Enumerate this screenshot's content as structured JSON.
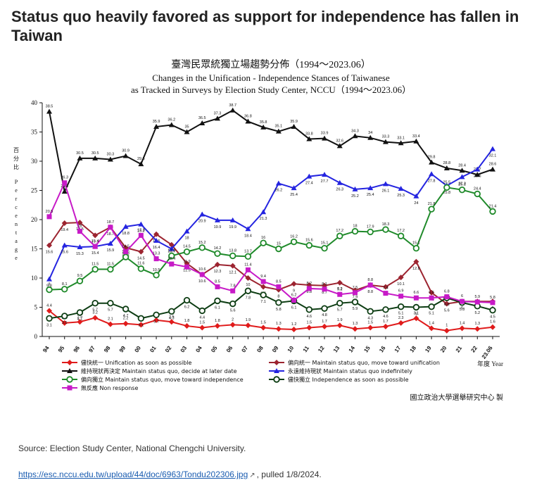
{
  "page": {
    "headline": "Status quo heavily favored as support for independence has fallen in Taiwan",
    "source": "Source: Election Study Center, National Chengchi University.",
    "link_text": "https://esc.nccu.edu.tw/upload/44/doc/6963/Tondu202306.jpg",
    "pulled": ", pulled 1/8/2024."
  },
  "chart_data": {
    "type": "line",
    "title_zh": "臺灣民眾統獨立場趨勢分佈（1994～2023.06）",
    "title_en_1": "Changes in the Unification - Independence Stances of Taiwanese",
    "title_en_2": "as Tracked in Surveys by Election Study Center, NCCU（1994～2023.06）",
    "ylabel_zh": "百分比",
    "ylabel_en": "Percentage",
    "xunit": "年度 Year",
    "credit": "國立政治大學選舉研究中心 製",
    "ylim": [
      0,
      40
    ],
    "yticks": [
      "0",
      "5",
      "10",
      "15",
      "20",
      "25",
      "30",
      "35",
      "40"
    ],
    "categories": [
      "94",
      "95",
      "96",
      "97",
      "98",
      "99",
      "00",
      "01",
      "02",
      "03",
      "04",
      "05",
      "06",
      "07",
      "08",
      "09",
      "10",
      "11",
      "12",
      "13",
      "14",
      "15",
      "16",
      "17",
      "18",
      "19",
      "20",
      "21",
      "22",
      "23.06"
    ],
    "series": [
      {
        "name": "儘快統一 Unification as soon as possible",
        "color": "#e01b1b",
        "marker": "diamond",
        "values": [
          4.4,
          2.3,
          2.5,
          3.2,
          2.1,
          2.2,
          2.0,
          2.8,
          2.5,
          1.8,
          1.5,
          1.8,
          2.0,
          1.9,
          1.5,
          1.3,
          1.2,
          1.5,
          1.7,
          1.9,
          1.3,
          1.5,
          1.7,
          2.3,
          3.1,
          1.4,
          1.0,
          1.4,
          1.3,
          1.6
        ]
      },
      {
        "name": "偏向統一 Maintain status quo, move toward unification",
        "color": "#9c2430",
        "marker": "diamond",
        "values": [
          15.6,
          19.4,
          19.5,
          17.3,
          18.7,
          15.2,
          14.5,
          17.5,
          15.7,
          12.5,
          10.6,
          12.3,
          12.1,
          10.0,
          8.5,
          8.0,
          9.0,
          8.8,
          8.7,
          9.2,
          7.9,
          8.8,
          8.5,
          10.1,
          12.8,
          7.5,
          5.6,
          6.0,
          6.0,
          6.0
        ]
      },
      {
        "name": "維持現狀再決定 Maintain status quo, decide at later date",
        "color": "#111111",
        "marker": "triangle",
        "values": [
          38.5,
          24.8,
          30.5,
          30.5,
          30.3,
          30.9,
          29.5,
          35.9,
          36.2,
          35.0,
          36.5,
          37.3,
          38.7,
          36.8,
          35.8,
          35.1,
          35.9,
          33.8,
          33.9,
          32.6,
          34.3,
          34.0,
          33.3,
          33.1,
          33.4,
          29.8,
          28.8,
          28.4,
          27.7,
          28.6
        ]
      },
      {
        "name": "永遠維持現狀 Maintain status quo indefinitely",
        "color": "#2424e0",
        "marker": "triangle",
        "values": [
          9.8,
          15.6,
          15.3,
          15.4,
          15.9,
          18.8,
          19.2,
          16.4,
          15.0,
          18.0,
          20.9,
          19.9,
          19.9,
          18.4,
          21.3,
          26.2,
          25.4,
          27.4,
          27.7,
          26.3,
          25.2,
          25.4,
          26.1,
          25.3,
          24.0,
          27.8,
          25.8,
          27.3,
          28.6,
          32.1
        ]
      },
      {
        "name": "偏向獨立 Maintain status quo, move toward independence",
        "color": "#1f8a2a",
        "marker": "circle",
        "values": [
          8.0,
          8.1,
          9.5,
          11.5,
          11.5,
          13.6,
          11.6,
          10.5,
          13.8,
          14.5,
          15.2,
          14.2,
          13.8,
          13.7,
          16.0,
          15.0,
          16.2,
          15.6,
          15.1,
          17.2,
          18.0,
          17.9,
          18.3,
          17.2,
          15.1,
          21.8,
          25.5,
          25.1,
          24.4,
          21.4
        ]
      },
      {
        "name": "儘快獨立 Independence as soon as possible",
        "color": "#0d3d13",
        "marker": "circle",
        "values": [
          3.1,
          3.5,
          4.1,
          5.7,
          5.7,
          4.7,
          3.1,
          3.7,
          4.3,
          6.2,
          4.4,
          6.1,
          5.6,
          7.8,
          7.1,
          5.8,
          6.1,
          4.6,
          4.8,
          5.7,
          5.9,
          4.3,
          4.6,
          5.1,
          5.0,
          5.1,
          6.6,
          5.8,
          5.2,
          4.5
        ]
      },
      {
        "name": "無反應 Non response",
        "color": "#c71ac7",
        "marker": "square",
        "values": [
          20.5,
          26.3,
          18.0,
          15.4,
          18.7,
          14.5,
          17.3,
          13.3,
          12.4,
          11.9,
          10.6,
          8.5,
          7.8,
          11.4,
          9.4,
          8.5,
          6.2,
          8.2,
          8.1,
          7.2,
          7.5,
          8.8,
          7.4,
          6.9,
          6.6,
          6.6,
          6.8,
          6.0,
          5.9,
          5.8
        ]
      }
    ]
  }
}
